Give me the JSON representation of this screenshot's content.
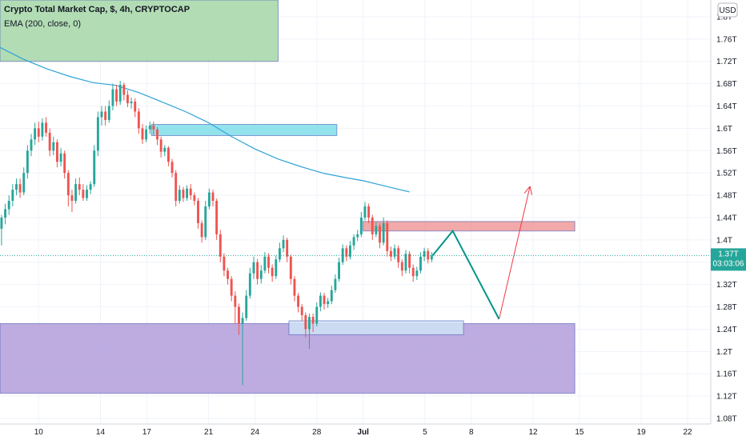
{
  "legend": {
    "title": "Crypto Total Market Cap, $, 4h, CRYPTOCAP",
    "indicator": "EMA (200, close, 0)"
  },
  "colors": {
    "up": "#26a69a",
    "down": "#ef5350",
    "ema": "#2ea3d8",
    "price_line": "#26a69a",
    "badge": "#26a69a",
    "projection": "#009688",
    "target_arrow": "#f23645"
  },
  "chart_data": {
    "type": "candlestick",
    "title": "",
    "currency_unit": "USD",
    "y_axis": {
      "ticks": [
        "1.08T",
        "1.12T",
        "1.16T",
        "1.2T",
        "1.24T",
        "1.28T",
        "1.32T",
        "1.36T",
        "1.4T",
        "1.44T",
        "1.48T",
        "1.52T",
        "1.56T",
        "1.6T",
        "1.64T",
        "1.68T",
        "1.72T",
        "1.76T",
        "1.8T"
      ],
      "tick_values": [
        1.08,
        1.12,
        1.16,
        1.2,
        1.24,
        1.28,
        1.32,
        1.36,
        1.4,
        1.44,
        1.48,
        1.52,
        1.56,
        1.6,
        1.64,
        1.68,
        1.72,
        1.76,
        1.8
      ],
      "range": [
        1.07,
        1.83
      ]
    },
    "x_axis": {
      "labels": [
        "10",
        "14",
        "17",
        "21",
        "24",
        "28",
        "Jul",
        "5",
        "8",
        "12",
        "15",
        "19",
        "22"
      ],
      "label_days": [
        10,
        14,
        17,
        21,
        24,
        28,
        31,
        35,
        38,
        42,
        45,
        49,
        52
      ],
      "range_days": [
        7.5,
        53.5
      ],
      "unit_note": "June days; Jul = July 1"
    },
    "current_price": {
      "label": "1.37T",
      "value": 1.372,
      "countdown": "03:03:06"
    },
    "zones": [
      {
        "name": "top-green-box",
        "day_start": 7.5,
        "day_end": 25.5,
        "low": 1.72,
        "high": 1.83,
        "color": "#a5d6a7"
      },
      {
        "name": "cyan-resistance",
        "day_start": 17.3,
        "day_end": 29.3,
        "low": 1.587,
        "high": 1.607,
        "color": "#80deea"
      },
      {
        "name": "red-resistance",
        "day_start": 31.0,
        "day_end": 44.7,
        "low": 1.416,
        "high": 1.433,
        "color": "#ef9a9a"
      },
      {
        "name": "purple-support",
        "day_start": 7.5,
        "day_end": 44.7,
        "low": 1.125,
        "high": 1.25,
        "color": "#b39ddb"
      },
      {
        "name": "light-blue-support",
        "day_start": 26.2,
        "day_end": 37.5,
        "low": 1.23,
        "high": 1.255,
        "color": "#cfe3f5"
      }
    ],
    "ema_200": [
      [
        7.5,
        1.745
      ],
      [
        9.0,
        1.724
      ],
      [
        10.5,
        1.707
      ],
      [
        12.0,
        1.693
      ],
      [
        13.5,
        1.682
      ],
      [
        15.0,
        1.677
      ],
      [
        16.5,
        1.664
      ],
      [
        18.0,
        1.647
      ],
      [
        19.5,
        1.63
      ],
      [
        21.0,
        1.61
      ],
      [
        22.5,
        1.585
      ],
      [
        24.0,
        1.563
      ],
      [
        25.5,
        1.545
      ],
      [
        27.0,
        1.531
      ],
      [
        28.5,
        1.519
      ],
      [
        30.0,
        1.511
      ],
      [
        31.0,
        1.506
      ],
      [
        32.5,
        1.496
      ],
      [
        34.0,
        1.486
      ]
    ],
    "candles": [
      [
        7.6,
        1.42,
        1.44,
        1.39,
        1.445
      ],
      [
        7.84,
        1.44,
        1.455,
        1.428,
        1.465
      ],
      [
        8.08,
        1.455,
        1.47,
        1.445,
        1.48
      ],
      [
        8.32,
        1.47,
        1.49,
        1.46,
        1.5
      ],
      [
        8.56,
        1.49,
        1.5,
        1.48,
        1.51
      ],
      [
        8.8,
        1.5,
        1.485,
        1.475,
        1.51
      ],
      [
        9.04,
        1.485,
        1.52,
        1.48,
        1.53
      ],
      [
        9.28,
        1.52,
        1.56,
        1.51,
        1.57
      ],
      [
        9.52,
        1.56,
        1.58,
        1.55,
        1.59
      ],
      [
        9.76,
        1.58,
        1.6,
        1.57,
        1.61
      ],
      [
        10.0,
        1.6,
        1.585,
        1.575,
        1.612
      ],
      [
        10.24,
        1.585,
        1.61,
        1.578,
        1.618
      ],
      [
        10.48,
        1.61,
        1.592,
        1.585,
        1.62
      ],
      [
        10.72,
        1.592,
        1.56,
        1.55,
        1.6
      ],
      [
        10.96,
        1.56,
        1.575,
        1.552,
        1.585
      ],
      [
        11.2,
        1.575,
        1.54,
        1.53,
        1.58
      ],
      [
        11.44,
        1.54,
        1.555,
        1.532,
        1.565
      ],
      [
        11.68,
        1.555,
        1.52,
        1.51,
        1.56
      ],
      [
        11.92,
        1.52,
        1.48,
        1.46,
        1.525
      ],
      [
        12.16,
        1.48,
        1.47,
        1.45,
        1.49
      ],
      [
        12.4,
        1.47,
        1.5,
        1.465,
        1.51
      ],
      [
        12.64,
        1.5,
        1.49,
        1.48,
        1.512
      ],
      [
        12.88,
        1.49,
        1.475,
        1.47,
        1.5
      ],
      [
        13.12,
        1.475,
        1.49,
        1.47,
        1.498
      ],
      [
        13.36,
        1.49,
        1.5,
        1.482,
        1.505
      ],
      [
        13.6,
        1.5,
        1.56,
        1.495,
        1.57
      ],
      [
        13.84,
        1.56,
        1.62,
        1.55,
        1.63
      ],
      [
        14.08,
        1.62,
        1.63,
        1.605,
        1.64
      ],
      [
        14.32,
        1.63,
        1.615,
        1.605,
        1.64
      ],
      [
        14.56,
        1.615,
        1.64,
        1.61,
        1.65
      ],
      [
        14.8,
        1.64,
        1.67,
        1.632,
        1.68
      ],
      [
        15.04,
        1.67,
        1.648,
        1.64,
        1.678
      ],
      [
        15.28,
        1.648,
        1.678,
        1.642,
        1.685
      ],
      [
        15.52,
        1.678,
        1.66,
        1.65,
        1.682
      ],
      [
        15.76,
        1.66,
        1.645,
        1.638,
        1.668
      ],
      [
        16.0,
        1.645,
        1.648,
        1.635,
        1.655
      ],
      [
        16.24,
        1.648,
        1.63,
        1.62,
        1.654
      ],
      [
        16.48,
        1.63,
        1.6,
        1.59,
        1.636
      ],
      [
        16.72,
        1.6,
        1.58,
        1.572,
        1.608
      ],
      [
        16.96,
        1.58,
        1.598,
        1.575,
        1.605
      ],
      [
        17.2,
        1.598,
        1.605,
        1.59,
        1.612
      ],
      [
        17.44,
        1.605,
        1.598,
        1.588,
        1.612
      ],
      [
        17.68,
        1.598,
        1.58,
        1.57,
        1.602
      ],
      [
        17.92,
        1.58,
        1.558,
        1.548,
        1.585
      ],
      [
        18.16,
        1.558,
        1.565,
        1.55,
        1.57
      ],
      [
        18.4,
        1.565,
        1.54,
        1.532,
        1.568
      ],
      [
        18.64,
        1.54,
        1.52,
        1.512,
        1.545
      ],
      [
        18.88,
        1.52,
        1.47,
        1.46,
        1.525
      ],
      [
        19.12,
        1.47,
        1.49,
        1.465,
        1.498
      ],
      [
        19.36,
        1.49,
        1.475,
        1.468,
        1.495
      ],
      [
        19.6,
        1.475,
        1.492,
        1.47,
        1.498
      ],
      [
        19.84,
        1.492,
        1.48,
        1.472,
        1.5
      ],
      [
        20.08,
        1.48,
        1.47,
        1.462,
        1.485
      ],
      [
        20.32,
        1.47,
        1.43,
        1.42,
        1.475
      ],
      [
        20.56,
        1.43,
        1.405,
        1.395,
        1.435
      ],
      [
        20.8,
        1.405,
        1.46,
        1.4,
        1.47
      ],
      [
        21.04,
        1.46,
        1.485,
        1.455,
        1.492
      ],
      [
        21.28,
        1.485,
        1.47,
        1.46,
        1.49
      ],
      [
        21.52,
        1.47,
        1.41,
        1.4,
        1.474
      ],
      [
        21.76,
        1.41,
        1.37,
        1.36,
        1.418
      ],
      [
        22.0,
        1.37,
        1.345,
        1.335,
        1.376
      ],
      [
        22.24,
        1.345,
        1.33,
        1.32,
        1.35
      ],
      [
        22.48,
        1.33,
        1.3,
        1.29,
        1.335
      ],
      [
        22.72,
        1.3,
        1.28,
        1.25,
        1.308
      ],
      [
        22.96,
        1.28,
        1.25,
        1.23,
        1.286
      ],
      [
        23.2,
        1.25,
        1.26,
        1.14,
        1.27
      ],
      [
        23.44,
        1.26,
        1.3,
        1.255,
        1.31
      ],
      [
        23.68,
        1.3,
        1.34,
        1.295,
        1.35
      ],
      [
        23.92,
        1.34,
        1.36,
        1.33,
        1.37
      ],
      [
        24.16,
        1.36,
        1.33,
        1.32,
        1.366
      ],
      [
        24.4,
        1.33,
        1.345,
        1.322,
        1.355
      ],
      [
        24.64,
        1.345,
        1.37,
        1.34,
        1.378
      ],
      [
        24.88,
        1.37,
        1.35,
        1.34,
        1.376
      ],
      [
        25.12,
        1.35,
        1.335,
        1.325,
        1.356
      ],
      [
        25.36,
        1.335,
        1.365,
        1.33,
        1.372
      ],
      [
        25.6,
        1.365,
        1.385,
        1.36,
        1.395
      ],
      [
        25.84,
        1.385,
        1.4,
        1.378,
        1.408
      ],
      [
        26.08,
        1.4,
        1.37,
        1.36,
        1.404
      ],
      [
        26.32,
        1.37,
        1.33,
        1.32,
        1.374
      ],
      [
        26.56,
        1.33,
        1.3,
        1.29,
        1.335
      ],
      [
        26.8,
        1.3,
        1.28,
        1.27,
        1.305
      ],
      [
        27.04,
        1.28,
        1.265,
        1.255,
        1.285
      ],
      [
        27.28,
        1.265,
        1.24,
        1.225,
        1.27
      ],
      [
        27.52,
        1.24,
        1.262,
        1.205,
        1.268
      ],
      [
        27.76,
        1.262,
        1.25,
        1.235,
        1.268
      ],
      [
        28.0,
        1.25,
        1.28,
        1.245,
        1.288
      ],
      [
        28.24,
        1.28,
        1.3,
        1.272,
        1.306
      ],
      [
        28.48,
        1.3,
        1.285,
        1.275,
        1.305
      ],
      [
        28.72,
        1.285,
        1.29,
        1.278,
        1.296
      ],
      [
        28.96,
        1.29,
        1.31,
        1.285,
        1.318
      ],
      [
        29.2,
        1.31,
        1.33,
        1.305,
        1.338
      ],
      [
        29.44,
        1.33,
        1.36,
        1.325,
        1.368
      ],
      [
        29.68,
        1.36,
        1.385,
        1.355,
        1.392
      ],
      [
        29.92,
        1.385,
        1.37,
        1.362,
        1.39
      ],
      [
        30.16,
        1.37,
        1.39,
        1.365,
        1.398
      ],
      [
        30.4,
        1.39,
        1.405,
        1.382,
        1.41
      ],
      [
        30.64,
        1.405,
        1.41,
        1.398,
        1.418
      ],
      [
        30.88,
        1.41,
        1.44,
        1.405,
        1.45
      ],
      [
        31.12,
        1.44,
        1.46,
        1.435,
        1.468
      ],
      [
        31.36,
        1.46,
        1.44,
        1.43,
        1.465
      ],
      [
        31.6,
        1.44,
        1.41,
        1.4,
        1.445
      ],
      [
        31.84,
        1.41,
        1.425,
        1.405,
        1.432
      ],
      [
        32.08,
        1.425,
        1.395,
        1.385,
        1.43
      ],
      [
        32.32,
        1.395,
        1.43,
        1.39,
        1.44
      ],
      [
        32.56,
        1.43,
        1.38,
        1.37,
        1.435
      ],
      [
        32.8,
        1.38,
        1.37,
        1.362,
        1.388
      ],
      [
        33.04,
        1.37,
        1.385,
        1.365,
        1.392
      ],
      [
        33.28,
        1.385,
        1.36,
        1.35,
        1.39
      ],
      [
        33.52,
        1.36,
        1.345,
        1.335,
        1.365
      ],
      [
        33.76,
        1.345,
        1.375,
        1.34,
        1.382
      ],
      [
        34.0,
        1.375,
        1.35,
        1.34,
        1.38
      ],
      [
        34.24,
        1.35,
        1.335,
        1.325,
        1.356
      ],
      [
        34.48,
        1.335,
        1.345,
        1.328,
        1.352
      ],
      [
        34.72,
        1.345,
        1.37,
        1.34,
        1.378
      ],
      [
        34.96,
        1.37,
        1.38,
        1.362,
        1.386
      ],
      [
        35.2,
        1.38,
        1.365,
        1.358,
        1.385
      ],
      [
        35.44,
        1.365,
        1.372,
        1.36,
        1.378
      ]
    ],
    "projection_path": [
      [
        35.5,
        1.372
      ],
      [
        36.8,
        1.416
      ],
      [
        39.8,
        1.258
      ],
      [
        41.8,
        1.496
      ]
    ]
  }
}
